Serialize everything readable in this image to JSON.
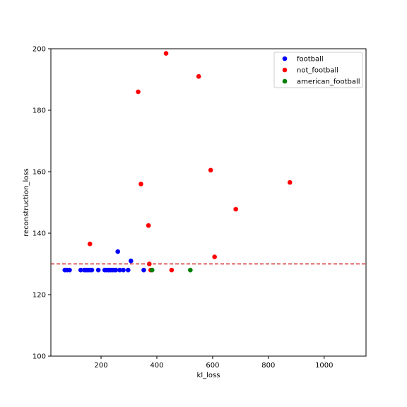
{
  "chart_data": {
    "type": "scatter",
    "title": "",
    "xlabel": "kl_loss",
    "ylabel": "reconstruction_loss",
    "xlim": [
      20,
      1150
    ],
    "ylim": [
      100,
      200
    ],
    "xticks": [
      200,
      400,
      600,
      800,
      1000
    ],
    "yticks": [
      100,
      120,
      140,
      160,
      180,
      200
    ],
    "grid": false,
    "legend_position": "top-right",
    "threshold": {
      "y": 130,
      "color": "#d62728",
      "style": "dashed"
    },
    "series": [
      {
        "name": "football",
        "color": "#0000ff",
        "points": [
          [
            70,
            128
          ],
          [
            78,
            128
          ],
          [
            87,
            128
          ],
          [
            127,
            128
          ],
          [
            140,
            128
          ],
          [
            147,
            128
          ],
          [
            153,
            128
          ],
          [
            160,
            128
          ],
          [
            167,
            128
          ],
          [
            190,
            128
          ],
          [
            213,
            128
          ],
          [
            220,
            128
          ],
          [
            227,
            128
          ],
          [
            233,
            128
          ],
          [
            240,
            128
          ],
          [
            247,
            128
          ],
          [
            253,
            128
          ],
          [
            260,
            134
          ],
          [
            267,
            128
          ],
          [
            280,
            128
          ],
          [
            297,
            128
          ],
          [
            307,
            131
          ],
          [
            353,
            128
          ]
        ]
      },
      {
        "name": "not_football",
        "color": "#ff0000",
        "points": [
          [
            160,
            136.5
          ],
          [
            333,
            186
          ],
          [
            343,
            156
          ],
          [
            370,
            142.5
          ],
          [
            373,
            130
          ],
          [
            378,
            128
          ],
          [
            433,
            198.5
          ],
          [
            453,
            128
          ],
          [
            550,
            191
          ],
          [
            593,
            160.5
          ],
          [
            607,
            132.3
          ],
          [
            683,
            147.8
          ],
          [
            877,
            156.5
          ]
        ]
      },
      {
        "name": "american_football",
        "color": "#008000",
        "points": [
          [
            383,
            128
          ],
          [
            520,
            128
          ]
        ]
      }
    ]
  }
}
